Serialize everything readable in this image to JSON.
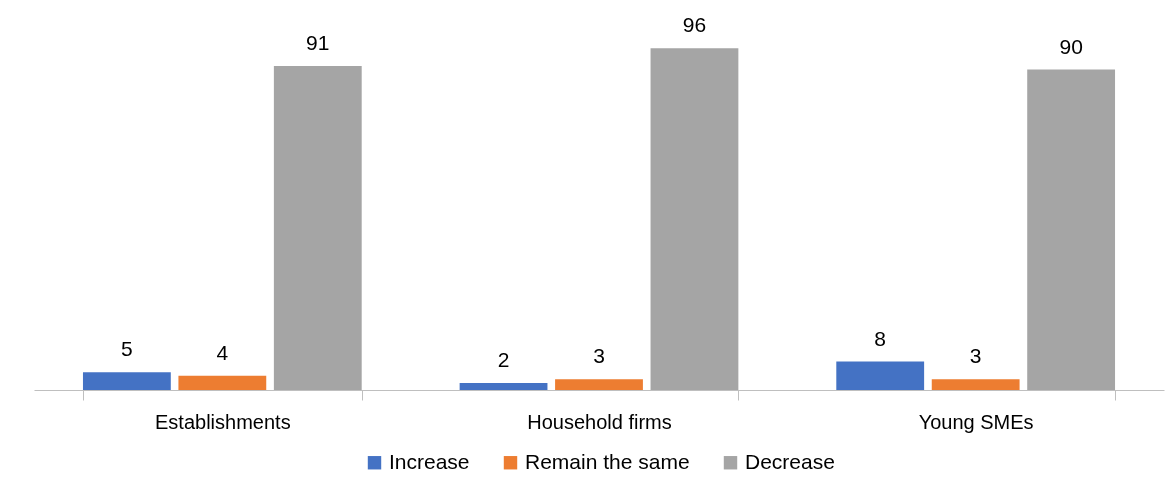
{
  "chart_data": {
    "type": "bar",
    "categories": [
      "Establishments",
      "Household firms",
      "Young SMEs"
    ],
    "series": [
      {
        "name": "Increase",
        "color": "#4472c4",
        "values": [
          5,
          2,
          8
        ]
      },
      {
        "name": "Remain the same",
        "color": "#ed7d31",
        "values": [
          4,
          3,
          3
        ]
      },
      {
        "name": "Decrease",
        "color": "#a5a5a5",
        "values": [
          91,
          96,
          90
        ]
      }
    ],
    "data_labels": true,
    "legend": "bottom",
    "tick_labels": "x"
  }
}
